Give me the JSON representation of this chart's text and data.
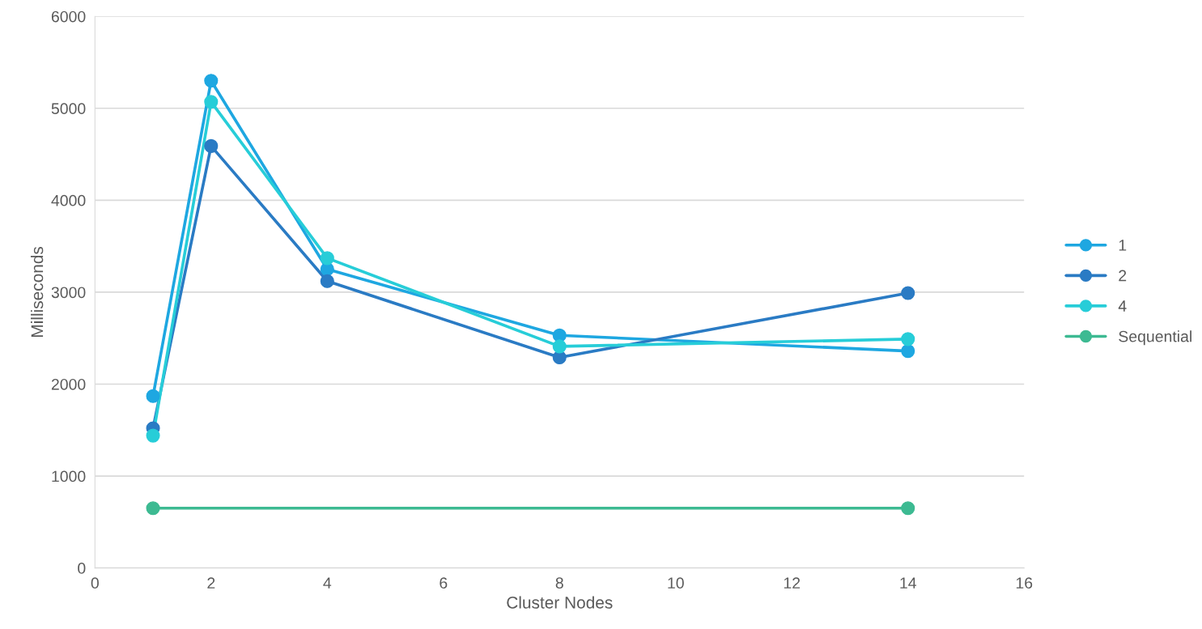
{
  "chart_data": {
    "type": "line",
    "xlabel": "Cluster Nodes",
    "ylabel": "Milliseconds",
    "x": [
      1,
      2,
      4,
      8,
      14
    ],
    "series": [
      {
        "name": "1",
        "color": "#1ea7e1",
        "values": [
          1870,
          5300,
          3250,
          2530,
          2360
        ]
      },
      {
        "name": "2",
        "color": "#2a7bc4",
        "values": [
          1520,
          4590,
          3120,
          2290,
          2990
        ]
      },
      {
        "name": "4",
        "color": "#27cdd8",
        "values": [
          1440,
          5070,
          3370,
          2410,
          2490
        ]
      },
      {
        "name": "Sequential",
        "color": "#3dba92",
        "x": [
          1,
          14
        ],
        "values": [
          650,
          650
        ]
      }
    ],
    "xlim": [
      0,
      16
    ],
    "xticks": [
      0,
      2,
      4,
      6,
      8,
      10,
      12,
      14,
      16
    ],
    "ylim": [
      0,
      6000
    ],
    "yticks": [
      0,
      1000,
      2000,
      3000,
      4000,
      5000,
      6000
    ],
    "grid": "y",
    "legend": "right",
    "marker": "circle",
    "line_style": "solid"
  }
}
